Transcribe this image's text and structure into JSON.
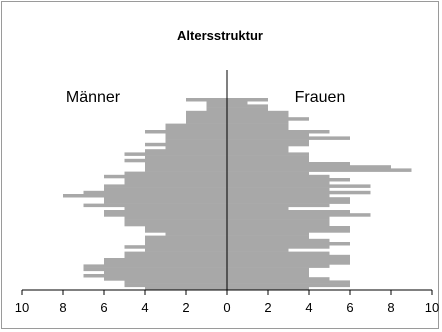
{
  "chart_data": {
    "type": "bar",
    "title": "Altersstruktur",
    "series": [
      {
        "name": "Männer",
        "values": [
          4,
          5,
          5,
          6,
          7,
          6,
          7,
          7,
          6,
          6,
          5,
          5,
          4,
          5,
          4,
          4,
          4,
          3,
          4,
          4,
          5,
          5,
          5,
          6,
          6,
          5,
          7,
          6,
          6,
          8,
          7,
          6,
          6,
          5,
          5,
          6,
          5,
          4,
          4,
          4,
          5,
          4,
          5,
          4,
          3,
          4,
          3,
          3,
          3,
          4,
          3,
          3,
          2,
          2,
          2,
          2,
          1,
          1,
          1,
          2
        ]
      },
      {
        "name": "Frauen",
        "values": [
          4,
          6,
          6,
          5,
          4,
          4,
          4,
          5,
          6,
          6,
          6,
          5,
          3,
          5,
          6,
          5,
          4,
          4,
          6,
          6,
          5,
          5,
          5,
          7,
          6,
          3,
          5,
          6,
          6,
          5,
          7,
          5,
          7,
          5,
          6,
          5,
          4,
          9,
          8,
          6,
          4,
          4,
          4,
          3,
          3,
          4,
          4,
          6,
          4,
          5,
          3,
          3,
          3,
          4,
          3,
          3,
          2,
          2,
          1,
          2
        ]
      }
    ],
    "xlim": [
      -10,
      10
    ],
    "x_ticks": [
      -10,
      -8,
      -6,
      -4,
      -2,
      0,
      2,
      4,
      6,
      8,
      10
    ],
    "x_tick_labels": [
      "10",
      "8",
      "6",
      "4",
      "2",
      "0",
      "2",
      "4",
      "6",
      "8",
      "10"
    ],
    "grid": false,
    "bar_color": "#a8a8a8",
    "frame_color": "#9a9a9a",
    "axis_color": "#000000"
  }
}
